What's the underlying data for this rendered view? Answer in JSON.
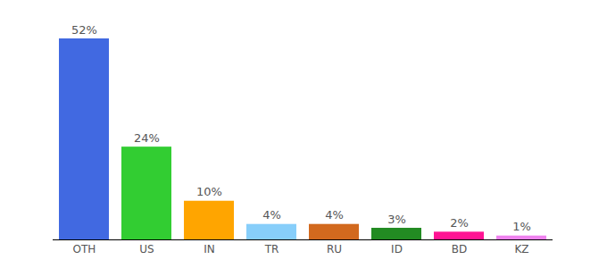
{
  "chart_data": {
    "type": "bar",
    "categories": [
      "OTH",
      "US",
      "IN",
      "TR",
      "RU",
      "ID",
      "BD",
      "KZ"
    ],
    "values": [
      52,
      24,
      10,
      4,
      4,
      3,
      2,
      1
    ],
    "value_labels": [
      "52%",
      "24%",
      "10%",
      "4%",
      "4%",
      "3%",
      "2%",
      "1%"
    ],
    "colors": [
      "#4169e1",
      "#32cd32",
      "#ffa500",
      "#87cefa",
      "#d2691e",
      "#228b22",
      "#ff1493",
      "#ee82ee"
    ],
    "ylim": [
      0,
      52
    ],
    "yticks": [],
    "grid": false,
    "data_labels": true,
    "tick_labels": "x"
  }
}
